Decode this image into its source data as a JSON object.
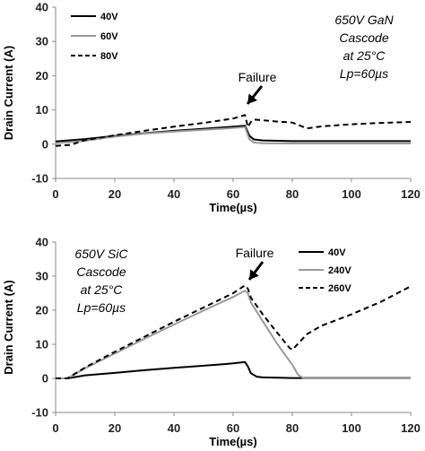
{
  "chart_data": [
    {
      "type": "line",
      "title": "",
      "xlabel": "Time(µs)",
      "ylabel": "Drain Current (A)",
      "xlim": [
        0,
        120
      ],
      "ylim": [
        -10,
        40
      ],
      "xticks": [
        "0",
        "20",
        "40",
        "60",
        "80",
        "100",
        "120"
      ],
      "yticks": [
        "-10",
        "0",
        "10",
        "20",
        "30",
        "40"
      ],
      "grid": false,
      "legend": "top-left",
      "annotation": [
        "650V GaN",
        "Cascode",
        "at 25°C",
        "Lp=60µs"
      ],
      "failure_label": "Failure",
      "series": [
        {
          "name": "40V",
          "color": "#000000",
          "style": "solid",
          "x": [
            0,
            10,
            20,
            30,
            40,
            50,
            60,
            64,
            65.5,
            67,
            70,
            80,
            100,
            120
          ],
          "y": [
            0.8,
            1.5,
            2.4,
            3.2,
            3.9,
            4.5,
            5.1,
            5.4,
            2.5,
            1.4,
            1.1,
            0.9,
            0.9,
            0.9
          ]
        },
        {
          "name": "60V",
          "color": "#999999",
          "style": "solid",
          "x": [
            0,
            10,
            20,
            30,
            40,
            50,
            60,
            64,
            65.5,
            67,
            70,
            80,
            100,
            120
          ],
          "y": [
            0.3,
            1.0,
            2.2,
            3.1,
            3.7,
            4.2,
            4.7,
            5.0,
            1.5,
            0.5,
            0.3,
            0.2,
            0.2,
            0.2
          ]
        },
        {
          "name": "80V",
          "color": "#000000",
          "style": "dashed",
          "x": [
            0,
            5,
            10,
            20,
            30,
            40,
            50,
            60,
            64,
            65,
            66,
            67,
            70,
            75,
            80,
            85,
            90,
            100,
            110,
            120
          ],
          "y": [
            -0.5,
            -0.2,
            1.2,
            2.6,
            3.9,
            5.1,
            6.2,
            7.5,
            8.5,
            5.0,
            6.5,
            7.2,
            7.0,
            6.6,
            6.3,
            4.6,
            5.2,
            5.8,
            6.2,
            6.5
          ]
        }
      ]
    },
    {
      "type": "line",
      "title": "",
      "xlabel": "Time(µs)",
      "ylabel": "Drain Current (A)",
      "xlim": [
        0,
        120
      ],
      "ylim": [
        -10,
        40
      ],
      "xticks": [
        "0",
        "20",
        "40",
        "60",
        "80",
        "100",
        "120"
      ],
      "yticks": [
        "-10",
        "0",
        "10",
        "20",
        "30",
        "40"
      ],
      "grid": false,
      "legend": "top-right",
      "annotation": [
        "650V SiC",
        "Cascode",
        "at 25°C",
        "Lp=60µs"
      ],
      "failure_label": "Failure",
      "series": [
        {
          "name": "40V",
          "color": "#000000",
          "style": "solid",
          "x": [
            0,
            4,
            10,
            20,
            30,
            40,
            50,
            60,
            64,
            65,
            66,
            68,
            70,
            80,
            100,
            120
          ],
          "y": [
            0,
            0,
            0.9,
            1.6,
            2.4,
            3.1,
            3.7,
            4.4,
            4.8,
            3.5,
            1.5,
            0.5,
            0.3,
            0.1,
            0.1,
            0.1
          ]
        },
        {
          "name": "240V",
          "color": "#999999",
          "style": "solid",
          "x": [
            0,
            4,
            10,
            20,
            30,
            40,
            50,
            60,
            64,
            65,
            66,
            70,
            75,
            80,
            82,
            84,
            90,
            100,
            120
          ],
          "y": [
            0,
            0,
            3.0,
            7.3,
            11.6,
            15.8,
            19.9,
            23.9,
            25.7,
            25.0,
            22.3,
            16.8,
            10.0,
            4.0,
            1.0,
            0,
            0,
            0,
            0
          ]
        },
        {
          "name": "260V",
          "color": "#000000",
          "style": "dashed",
          "x": [
            0,
            4,
            10,
            20,
            30,
            40,
            50,
            60,
            64,
            65,
            66,
            70,
            75,
            79,
            80,
            85,
            90,
            100,
            110,
            120
          ],
          "y": [
            0,
            0,
            3.2,
            7.8,
            12.2,
            16.6,
            20.8,
            25.0,
            27.3,
            26.3,
            23.7,
            18.8,
            13.3,
            9.0,
            8.4,
            13.0,
            15.5,
            18.8,
            22.5,
            27.0
          ]
        }
      ]
    }
  ]
}
